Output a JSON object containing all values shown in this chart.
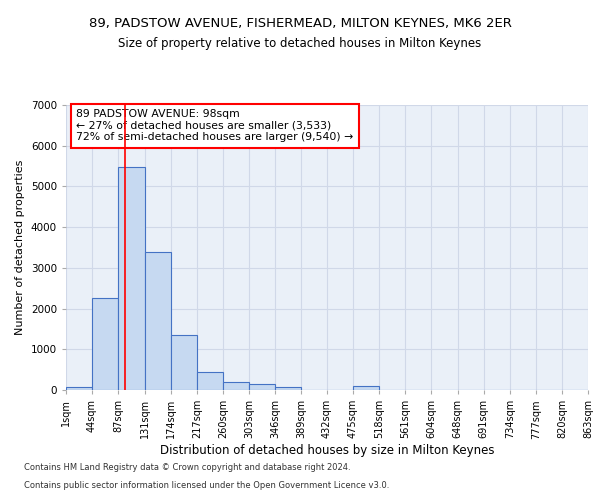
{
  "title1": "89, PADSTOW AVENUE, FISHERMEAD, MILTON KEYNES, MK6 2ER",
  "title2": "Size of property relative to detached houses in Milton Keynes",
  "xlabel": "Distribution of detached houses by size in Milton Keynes",
  "ylabel": "Number of detached properties",
  "bin_labels": [
    "1sqm",
    "44sqm",
    "87sqm",
    "131sqm",
    "174sqm",
    "217sqm",
    "260sqm",
    "303sqm",
    "346sqm",
    "389sqm",
    "432sqm",
    "475sqm",
    "518sqm",
    "561sqm",
    "604sqm",
    "648sqm",
    "691sqm",
    "734sqm",
    "777sqm",
    "820sqm",
    "863sqm"
  ],
  "bin_edges": [
    1,
    44,
    87,
    131,
    174,
    217,
    260,
    303,
    346,
    389,
    432,
    475,
    518,
    561,
    604,
    648,
    691,
    734,
    777,
    820,
    863
  ],
  "bar_heights": [
    80,
    2270,
    5470,
    3400,
    1340,
    450,
    190,
    155,
    75,
    0,
    0,
    100,
    0,
    0,
    0,
    0,
    0,
    0,
    0,
    0
  ],
  "bar_color": "#c6d9f1",
  "bar_edge_color": "#4472c4",
  "bar_edge_width": 0.8,
  "red_line_x": 98,
  "annotation_text": "89 PADSTOW AVENUE: 98sqm\n← 27% of detached houses are smaller (3,533)\n72% of semi-detached houses are larger (9,540) →",
  "annotation_box_color": "white",
  "annotation_box_edge_color": "red",
  "ylim": [
    0,
    7000
  ],
  "grid_color": "#d0d8e8",
  "bg_color": "#eaf0f8",
  "footer1": "Contains HM Land Registry data © Crown copyright and database right 2024.",
  "footer2": "Contains public sector information licensed under the Open Government Licence v3.0.",
  "title1_fontsize": 9.5,
  "title2_fontsize": 8.5,
  "annotation_fontsize": 7.8,
  "tick_fontsize": 7,
  "ylabel_fontsize": 8,
  "xlabel_fontsize": 8.5,
  "footer_fontsize": 6
}
